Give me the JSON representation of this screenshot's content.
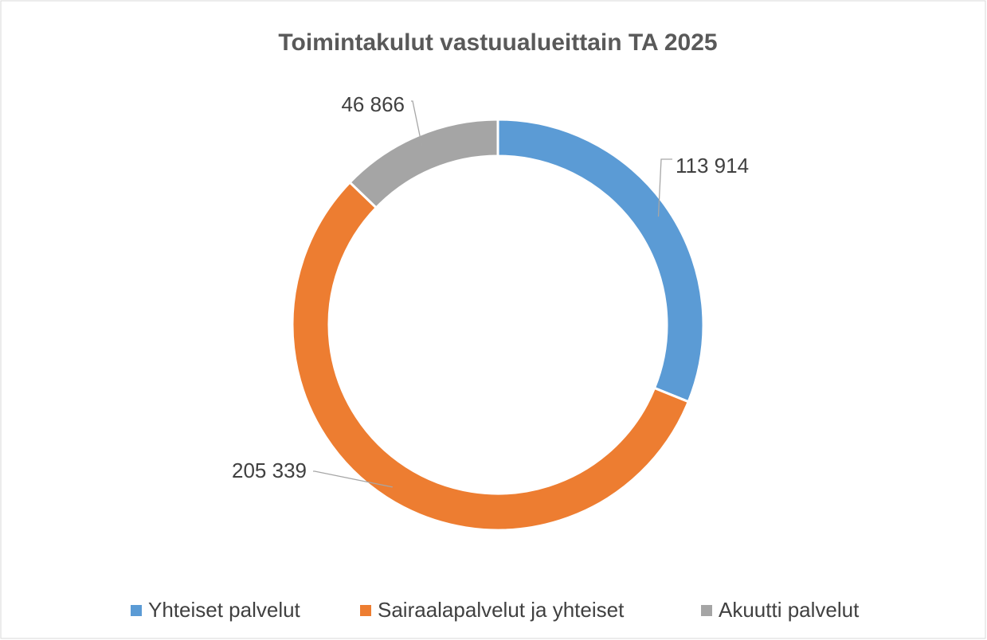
{
  "chart_data": {
    "type": "pie",
    "donut": true,
    "title": "Toimintakulut vastuualueittain TA 2025",
    "categories": [
      "Yhteiset palvelut",
      "Sairaalapalvelut ja yhteiset",
      "Akuutti palvelut"
    ],
    "values": [
      113914,
      205339,
      46866
    ],
    "value_labels": [
      "113 914",
      "205 339",
      "46 866"
    ],
    "colors": [
      "#5b9bd5",
      "#ed7d31",
      "#a5a5a5"
    ],
    "legend": "bottom"
  }
}
